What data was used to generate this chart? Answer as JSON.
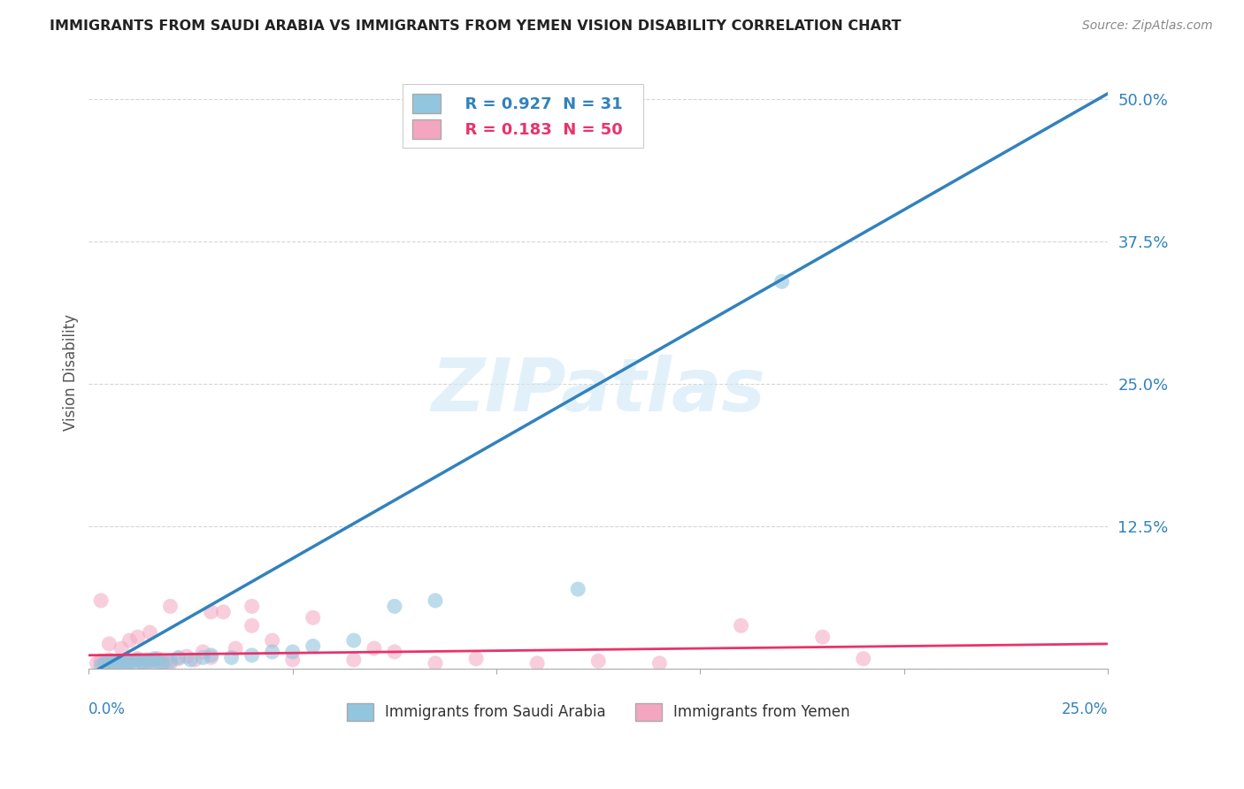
{
  "title": "IMMIGRANTS FROM SAUDI ARABIA VS IMMIGRANTS FROM YEMEN VISION DISABILITY CORRELATION CHART",
  "source": "Source: ZipAtlas.com",
  "ylabel": "Vision Disability",
  "xlim": [
    0.0,
    0.25
  ],
  "ylim": [
    0.0,
    0.52
  ],
  "R_saudi": 0.927,
  "N_saudi": 31,
  "R_yemen": 0.183,
  "N_yemen": 50,
  "saudi_color": "#92c5de",
  "saudi_color_line": "#3182bd",
  "yemen_color": "#f4a6c0",
  "yemen_color_line": "#e8336b",
  "legend_label_saudi": "Immigrants from Saudi Arabia",
  "legend_label_yemen": "Immigrants from Yemen",
  "watermark": "ZIPatlas",
  "background_color": "#ffffff",
  "grid_color": "#cccccc",
  "saudi_line_x0": 0.0,
  "saudi_line_y0": -0.005,
  "saudi_line_x1": 0.25,
  "saudi_line_y1": 0.505,
  "yemen_line_x0": 0.0,
  "yemen_line_y0": 0.012,
  "yemen_line_x1": 0.25,
  "yemen_line_y1": 0.022,
  "saudi_points_x": [
    0.003,
    0.004,
    0.005,
    0.006,
    0.007,
    0.008,
    0.009,
    0.01,
    0.011,
    0.012,
    0.013,
    0.014,
    0.015,
    0.016,
    0.017,
    0.018,
    0.02,
    0.022,
    0.025,
    0.028,
    0.03,
    0.035,
    0.04,
    0.045,
    0.05,
    0.055,
    0.065,
    0.075,
    0.085,
    0.12,
    0.17
  ],
  "saudi_points_y": [
    0.003,
    0.005,
    0.004,
    0.006,
    0.005,
    0.007,
    0.004,
    0.006,
    0.005,
    0.008,
    0.006,
    0.005,
    0.007,
    0.009,
    0.006,
    0.005,
    0.007,
    0.01,
    0.008,
    0.01,
    0.012,
    0.01,
    0.012,
    0.015,
    0.015,
    0.02,
    0.025,
    0.055,
    0.06,
    0.07,
    0.34
  ],
  "yemen_points_x": [
    0.002,
    0.003,
    0.004,
    0.005,
    0.006,
    0.007,
    0.008,
    0.009,
    0.01,
    0.011,
    0.012,
    0.013,
    0.014,
    0.015,
    0.016,
    0.017,
    0.018,
    0.019,
    0.02,
    0.022,
    0.024,
    0.026,
    0.028,
    0.03,
    0.033,
    0.036,
    0.04,
    0.045,
    0.05,
    0.055,
    0.065,
    0.075,
    0.085,
    0.095,
    0.11,
    0.125,
    0.14,
    0.16,
    0.19,
    0.003,
    0.005,
    0.008,
    0.01,
    0.012,
    0.015,
    0.02,
    0.03,
    0.04,
    0.07,
    0.18
  ],
  "yemen_points_y": [
    0.005,
    0.007,
    0.006,
    0.008,
    0.005,
    0.007,
    0.006,
    0.008,
    0.005,
    0.007,
    0.009,
    0.006,
    0.008,
    0.005,
    0.007,
    0.009,
    0.006,
    0.007,
    0.005,
    0.009,
    0.011,
    0.008,
    0.015,
    0.01,
    0.05,
    0.018,
    0.055,
    0.025,
    0.008,
    0.045,
    0.008,
    0.015,
    0.005,
    0.009,
    0.005,
    0.007,
    0.005,
    0.038,
    0.009,
    0.06,
    0.022,
    0.018,
    0.025,
    0.028,
    0.032,
    0.055,
    0.05,
    0.038,
    0.018,
    0.028
  ]
}
